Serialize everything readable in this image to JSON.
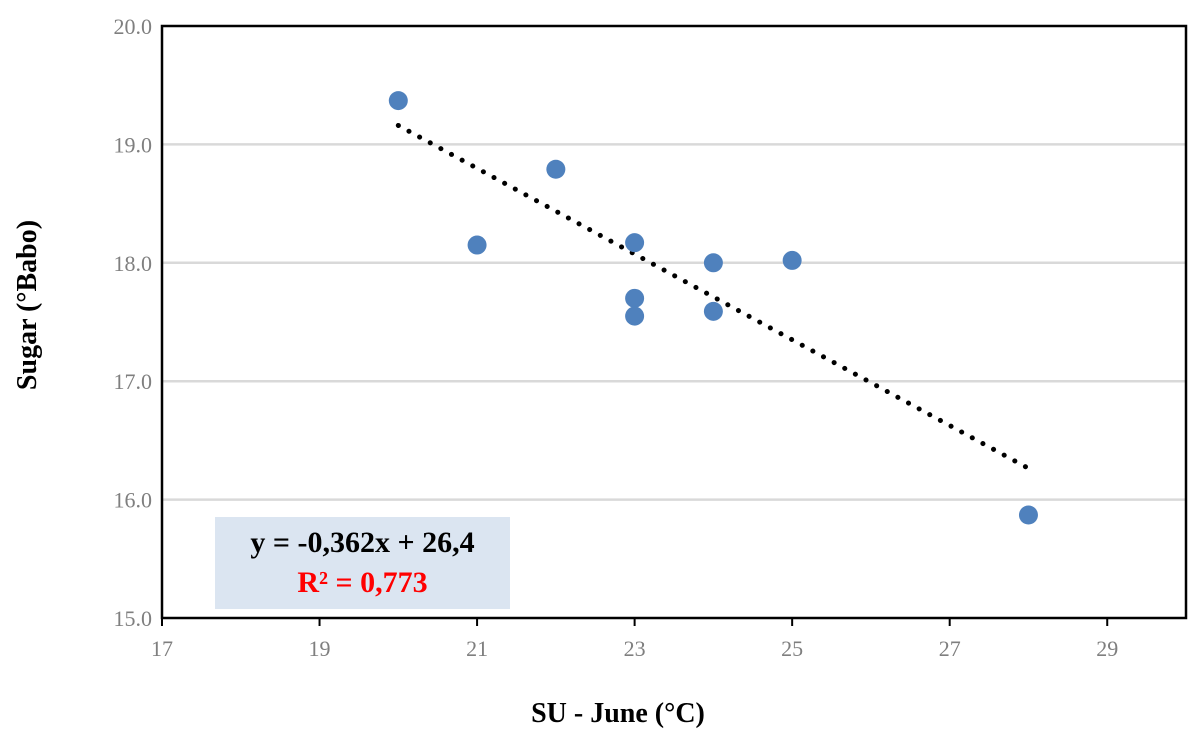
{
  "chart_data": {
    "type": "scatter",
    "title": "",
    "xlabel": "SU - June (°C)",
    "ylabel": "Sugar (°Babo)",
    "xlim": [
      17,
      30
    ],
    "ylim": [
      15.0,
      20.0
    ],
    "x_ticks": [
      17,
      19,
      21,
      23,
      25,
      27,
      29
    ],
    "y_ticks": [
      15.0,
      16.0,
      17.0,
      18.0,
      19.0,
      20.0
    ],
    "y_tick_labels": [
      "15.0",
      "16.0",
      "17.0",
      "18.0",
      "19.0",
      "20.0"
    ],
    "grid": "horizontal",
    "legend": "none",
    "series": [
      {
        "color": "#4f81bd",
        "points": [
          {
            "x": 20,
            "y": 19.37
          },
          {
            "x": 21,
            "y": 18.15
          },
          {
            "x": 22,
            "y": 18.79
          },
          {
            "x": 23,
            "y": 18.17
          },
          {
            "x": 23,
            "y": 17.7
          },
          {
            "x": 23,
            "y": 17.55
          },
          {
            "x": 24,
            "y": 18.0
          },
          {
            "x": 24,
            "y": 17.59
          },
          {
            "x": 25,
            "y": 18.02
          },
          {
            "x": 28,
            "y": 15.87
          }
        ]
      }
    ],
    "trendline": {
      "type": "linear",
      "style": "dotted",
      "color": "#000000",
      "slope": -0.362,
      "intercept": 26.4,
      "x_range": [
        20,
        28
      ]
    },
    "annotation": {
      "equation": "y = -0,362x + 26,4",
      "r_squared": "R² = 0,773",
      "r_squared_color": "#ff0000",
      "box_color": "#dbe5f1"
    }
  }
}
